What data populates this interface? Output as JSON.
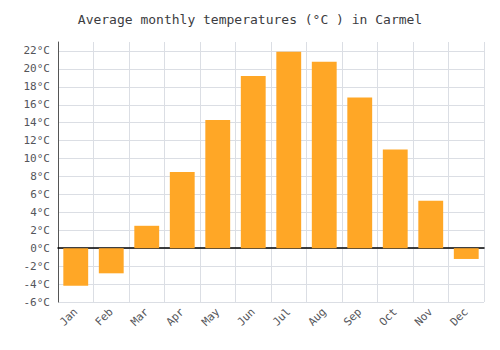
{
  "chart_data": {
    "type": "bar",
    "title": "Average monthly temperatures (°C ) in Carmel",
    "categories": [
      "Jan",
      "Feb",
      "Mar",
      "Apr",
      "May",
      "Jun",
      "Jul",
      "Aug",
      "Sep",
      "Oct",
      "Nov",
      "Dec"
    ],
    "values": [
      -4.2,
      -2.8,
      2.5,
      8.5,
      14.3,
      19.2,
      21.9,
      20.8,
      16.8,
      11.0,
      5.3,
      -1.2
    ],
    "color": "#FFA726",
    "ylim": [
      -6,
      23
    ],
    "yticks": [
      {
        "value": -6,
        "label": "-6°C"
      },
      {
        "value": -4,
        "label": "-4°C"
      },
      {
        "value": -2,
        "label": "-2°C"
      },
      {
        "value": 0,
        "label": "0°C"
      },
      {
        "value": 2,
        "label": "2°C"
      },
      {
        "value": 4,
        "label": "4°C"
      },
      {
        "value": 6,
        "label": "6°C"
      },
      {
        "value": 8,
        "label": "8°C"
      },
      {
        "value": 10,
        "label": "10°C"
      },
      {
        "value": 12,
        "label": "12°C"
      },
      {
        "value": 14,
        "label": "14°C"
      },
      {
        "value": 16,
        "label": "16°C"
      },
      {
        "value": 18,
        "label": "18°C"
      },
      {
        "value": 20,
        "label": "20°C"
      },
      {
        "value": 22,
        "label": "22°C"
      }
    ],
    "grid": true
  }
}
